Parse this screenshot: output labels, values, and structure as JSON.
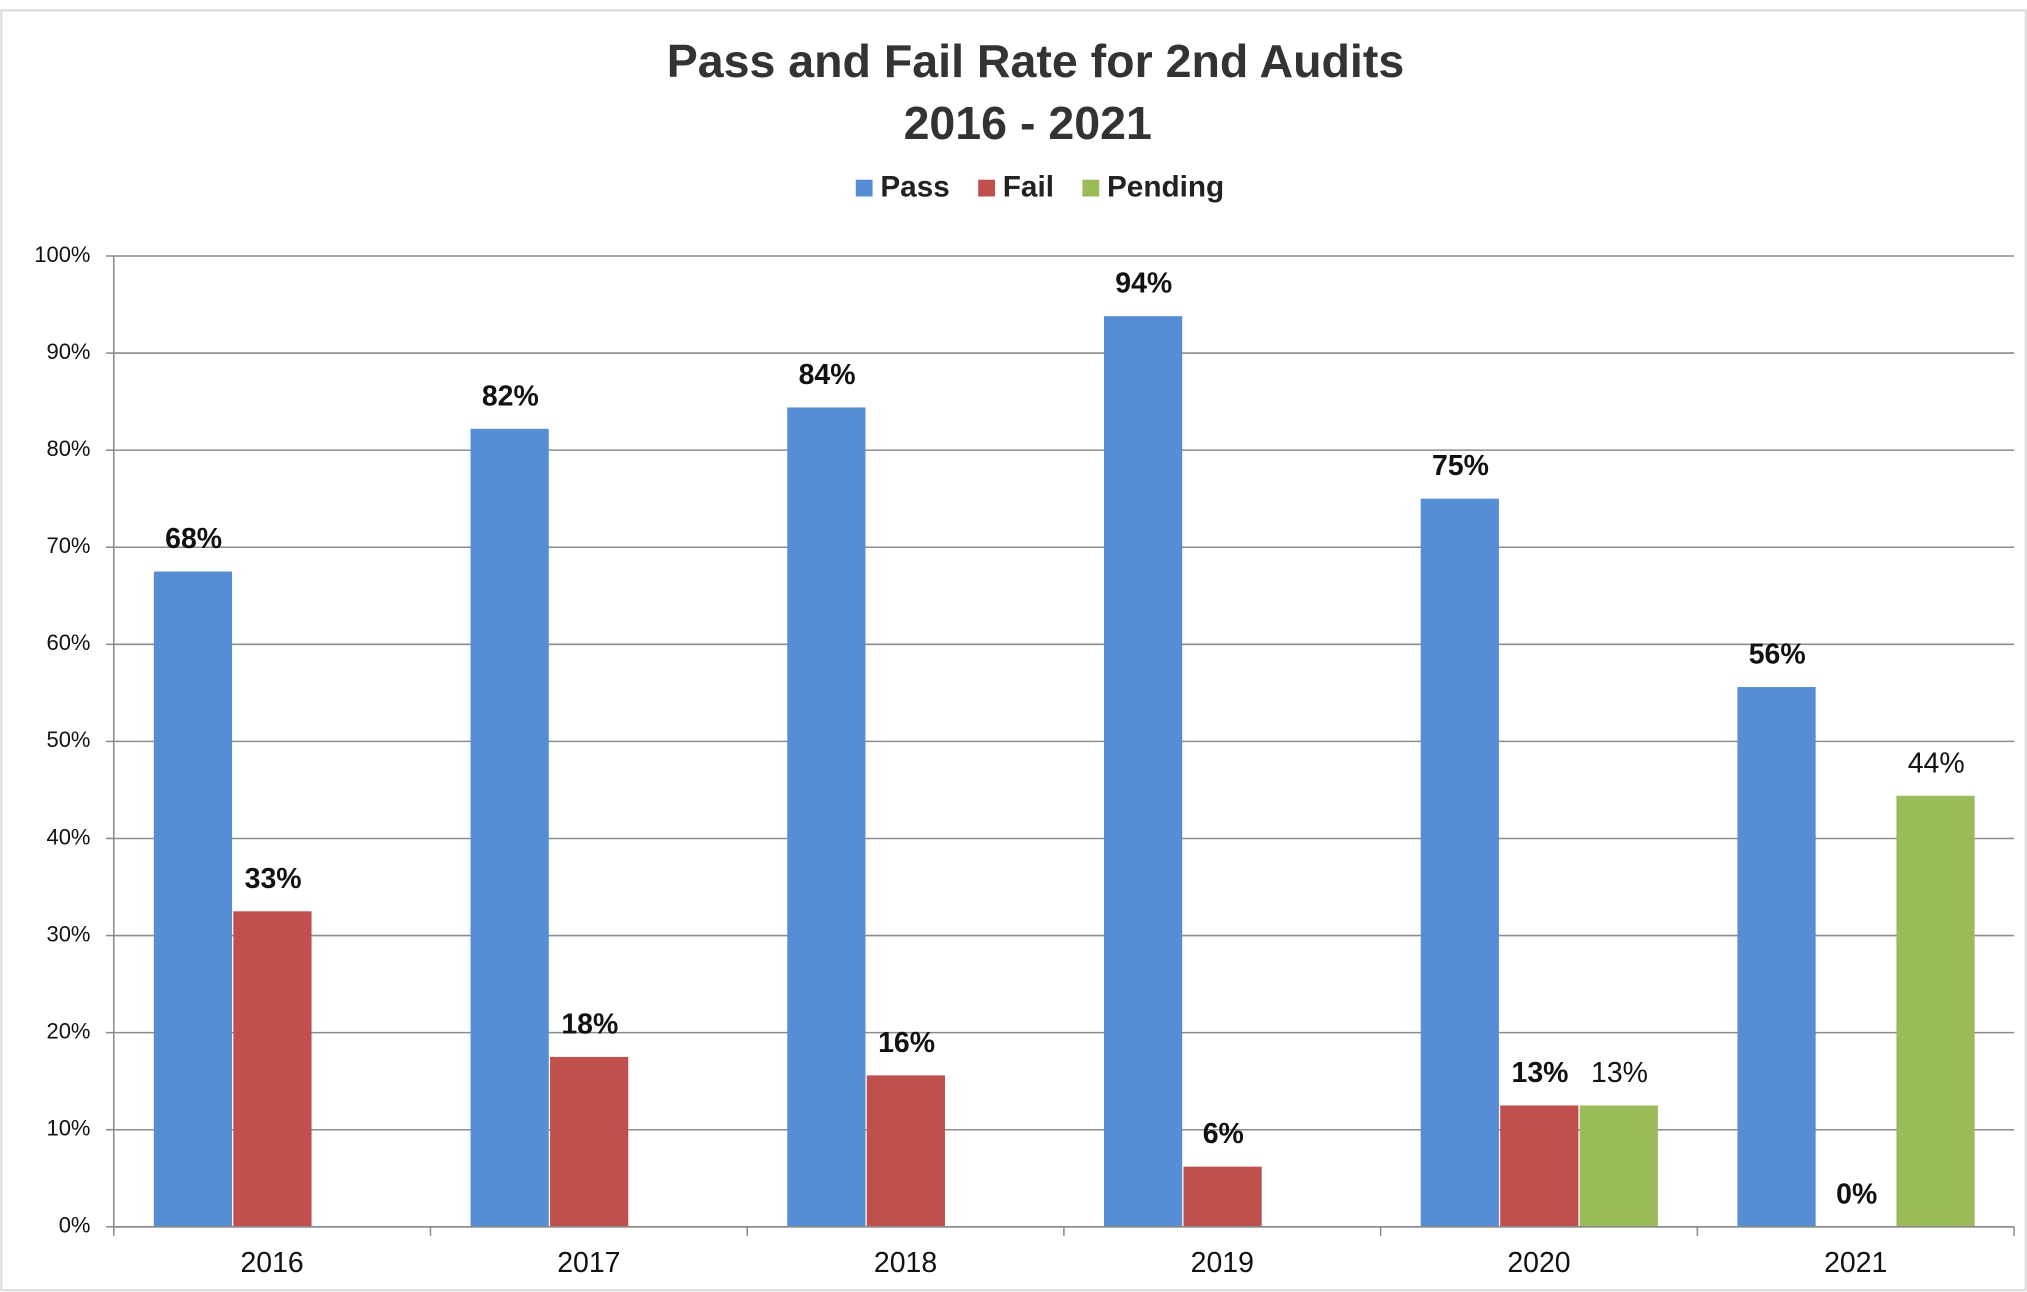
{
  "chart_data": {
    "type": "bar",
    "title": "Pass and Fail Rate for 2nd Audits",
    "subtitle": "2016 - 2021",
    "categories": [
      "2016",
      "2017",
      "2018",
      "2019",
      "2020",
      "2021"
    ],
    "series": [
      {
        "name": "Pass",
        "color": "#558ed5",
        "values": [
          67.5,
          82.2,
          84.4,
          93.8,
          75,
          55.6
        ],
        "value_labels": [
          "68%",
          "82%",
          "84%",
          "94%",
          "75%",
          "56%"
        ]
      },
      {
        "name": "Fail",
        "color": "#c0504d",
        "values": [
          32.5,
          17.5,
          15.6,
          6.2,
          12.5,
          0
        ],
        "value_labels": [
          "33%",
          "18%",
          "16%",
          "6%",
          "13%",
          "0%"
        ]
      },
      {
        "name": "Pending",
        "color": "#9bbb59",
        "values": [
          null,
          null,
          null,
          null,
          12.5,
          44.4
        ],
        "value_labels": [
          null,
          null,
          null,
          null,
          "13%",
          "44%"
        ]
      }
    ],
    "ylim": [
      0,
      100
    ],
    "yticks": [
      {
        "value": 0,
        "label": "0%"
      },
      {
        "value": 10,
        "label": "10%"
      },
      {
        "value": 20,
        "label": "20%"
      },
      {
        "value": 30,
        "label": "30%"
      },
      {
        "value": 40,
        "label": "40%"
      },
      {
        "value": 50,
        "label": "50%"
      },
      {
        "value": 60,
        "label": "60%"
      },
      {
        "value": 70,
        "label": "70%"
      },
      {
        "value": 80,
        "label": "80%"
      },
      {
        "value": 90,
        "label": "90%"
      },
      {
        "value": 100,
        "label": "100%"
      }
    ],
    "grid": true,
    "legend": "top"
  }
}
